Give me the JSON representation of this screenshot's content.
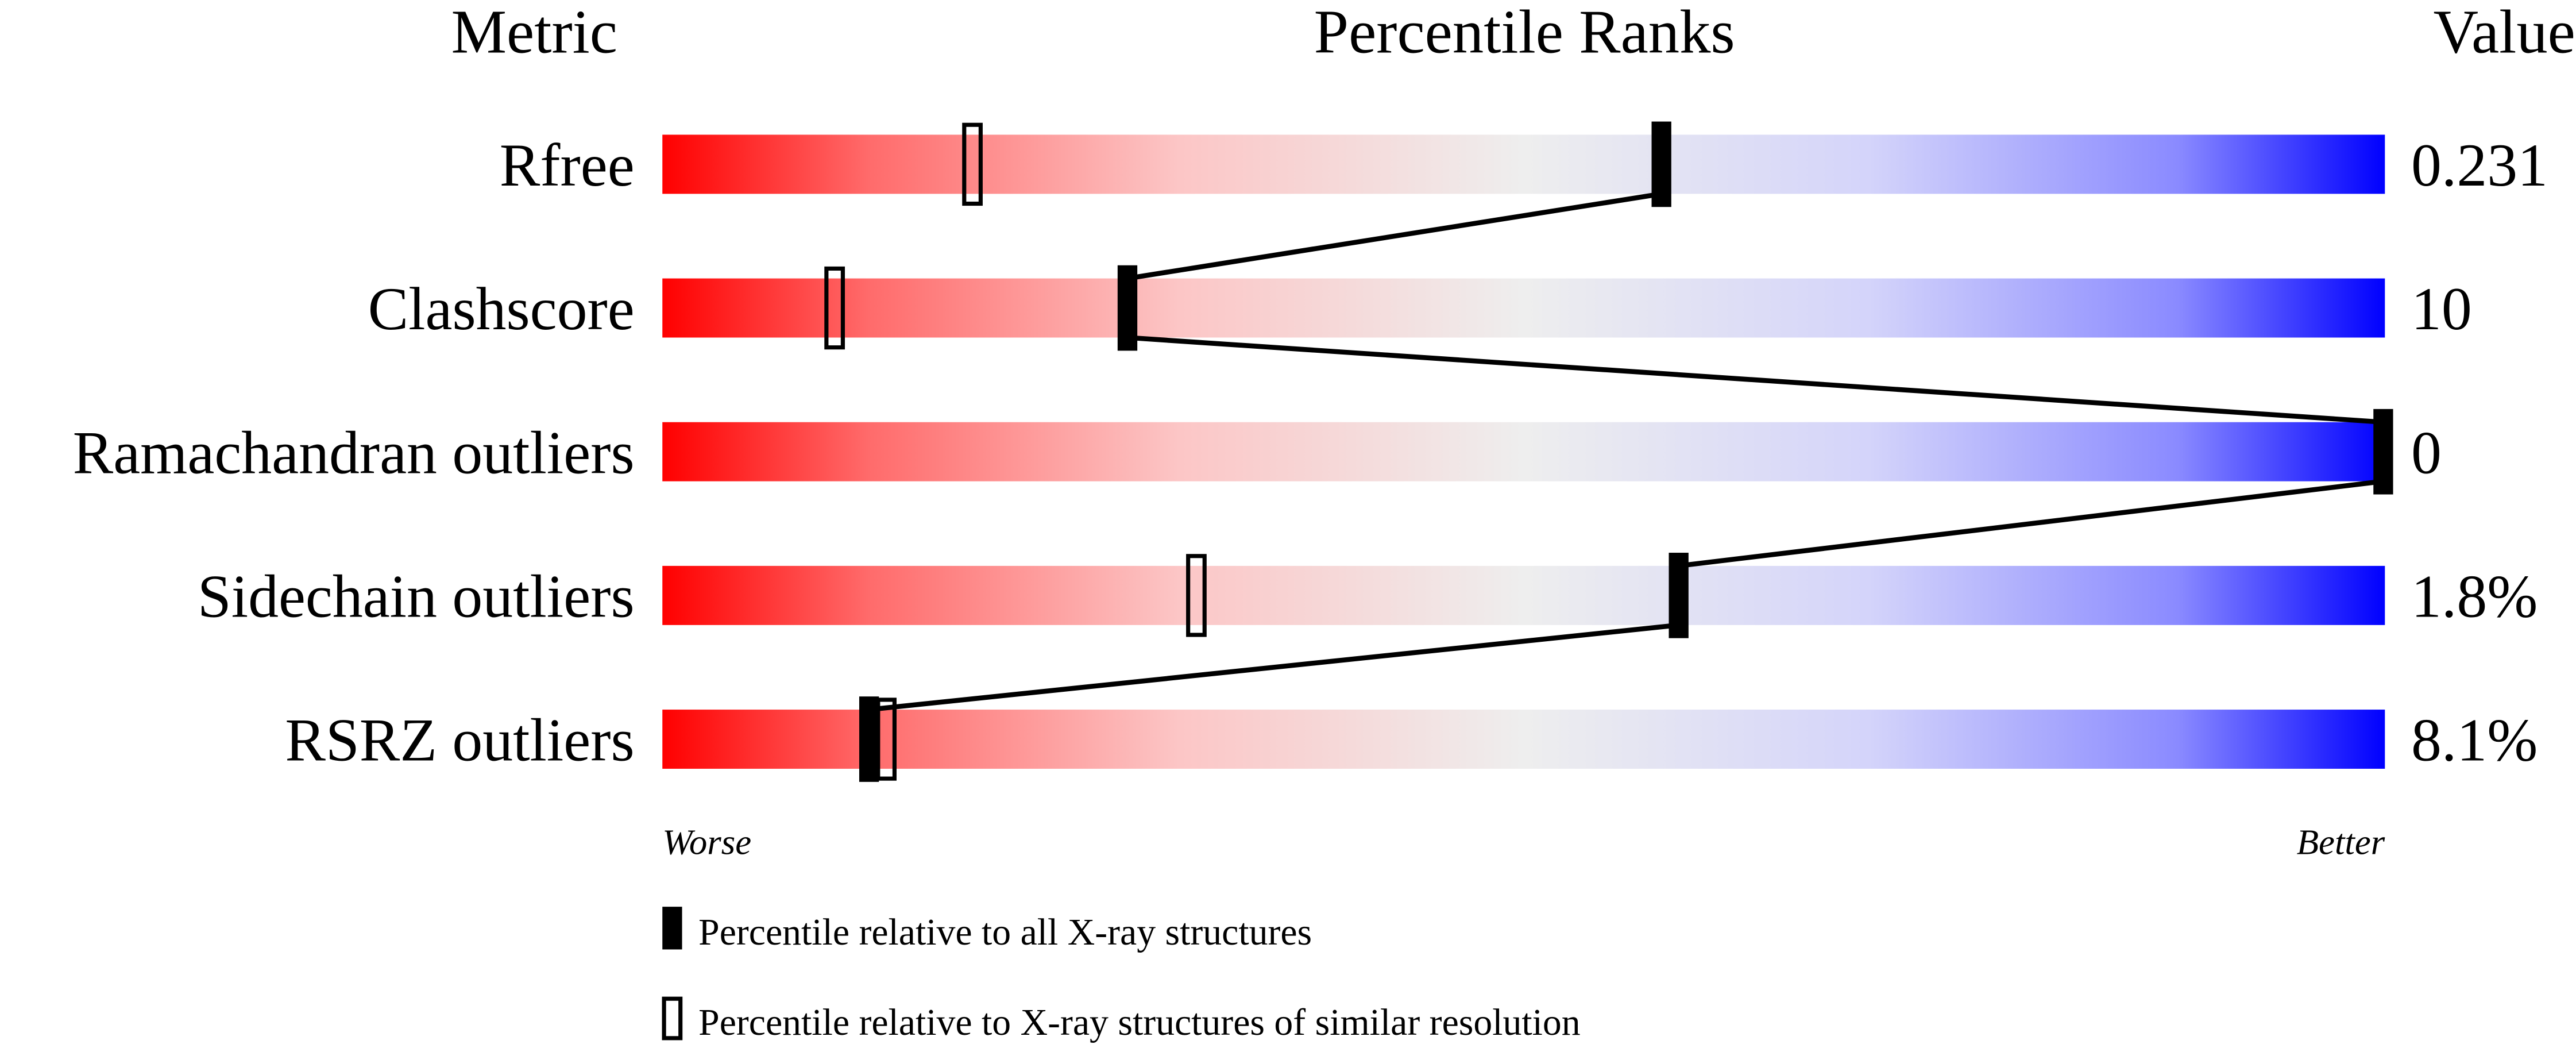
{
  "chart_data": {
    "type": "percentile-bar",
    "headers": {
      "metric": "Metric",
      "ranks": "Percentile Ranks",
      "value": "Value"
    },
    "axis": {
      "min_label": "Worse",
      "max_label": "Better",
      "range": [
        0,
        100
      ]
    },
    "gradient_colors": {
      "worse": "#ff0000",
      "middle": "#eeeeee",
      "better": "#0000ff"
    },
    "rows": [
      {
        "metric": "Rfree",
        "value": "0.231",
        "percentile_all": 58,
        "percentile_similar": 18
      },
      {
        "metric": "Clashscore",
        "value": "10",
        "percentile_all": 27,
        "percentile_similar": 10
      },
      {
        "metric": "Ramachandran outliers",
        "value": "0",
        "percentile_all": 100,
        "percentile_similar": null
      },
      {
        "metric": "Sidechain outliers",
        "value": "1.8%",
        "percentile_all": 59,
        "percentile_similar": 31
      },
      {
        "metric": "RSRZ outliers",
        "value": "8.1%",
        "percentile_all": 12,
        "percentile_similar": 13
      }
    ],
    "legend": {
      "all": "Percentile relative to all X-ray structures",
      "similar": "Percentile relative to X-ray structures of similar resolution"
    }
  }
}
